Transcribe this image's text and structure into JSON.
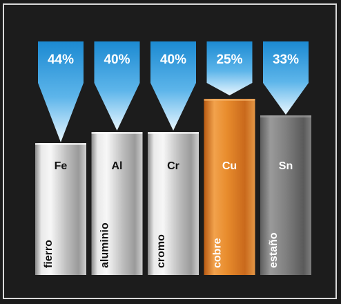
{
  "chart_data": {
    "type": "bar",
    "categories": [
      "Fe",
      "Al",
      "Cr",
      "Cu",
      "Sn"
    ],
    "names": [
      "fierro",
      "aluminio",
      "cromo",
      "cobre",
      "estaño"
    ],
    "values": [
      44,
      40,
      40,
      25,
      33
    ],
    "value_labels": [
      "44%",
      "40%",
      "40%",
      "25%",
      "33%"
    ],
    "colors": {
      "background": "#1c1c1c",
      "border": "#d9d9d9",
      "banner": "#1e8fd6",
      "banner_light": "#e8f6ff",
      "metal": "#bdbdbd",
      "copper": "#e0822a",
      "tin": "#777777"
    },
    "bar_styles": [
      "silver",
      "silver",
      "silver",
      "copper",
      "tin"
    ]
  }
}
